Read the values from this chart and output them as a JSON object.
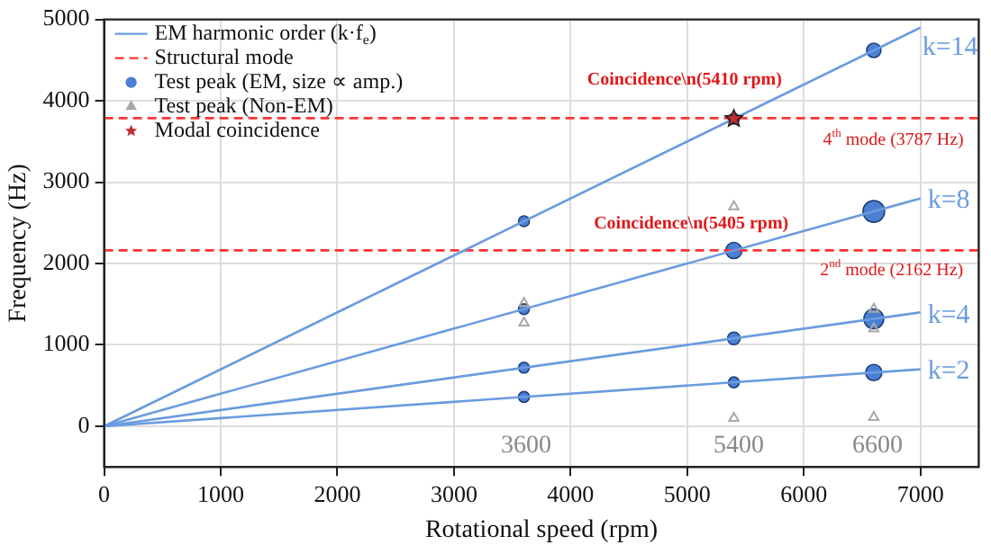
{
  "chart_data": {
    "type": "line",
    "xlabel": "Rotational speed (rpm)",
    "ylabel": "Frequency (Hz)",
    "xlim": [
      0,
      7500
    ],
    "ylim": [
      -500,
      5000
    ],
    "xticks": [
      0,
      1000,
      2000,
      3000,
      4000,
      5000,
      6000,
      7000
    ],
    "yticks": [
      0,
      1000,
      2000,
      3000,
      4000,
      5000
    ],
    "grid": true,
    "legend": "top left",
    "series": [
      {
        "name": "EM harmonic order (k·f$_{e}$)",
        "type": "line",
        "color": "#6a9be0",
        "marker": "none",
        "line_style": "solid",
        "x": [
          0,
          7000
        ],
        "values": [
          0,
          4900
        ]
      },
      {
        "type": "line",
        "color": "#6a9be0",
        "marker": "none",
        "line_style": "solid",
        "x": [
          0,
          7000
        ],
        "values": [
          0,
          2800
        ]
      },
      {
        "type": "line",
        "color": "#6a9be0",
        "marker": "none",
        "line_style": "solid",
        "x": [
          0,
          7000
        ],
        "values": [
          0,
          1400
        ]
      },
      {
        "type": "line",
        "color": "#6a9be0",
        "marker": "none",
        "line_style": "solid",
        "x": [
          0,
          7000
        ],
        "values": [
          0,
          700
        ]
      },
      {
        "name": "Structural mode",
        "type": "line",
        "color": "#ff3333",
        "marker": "none",
        "line_style": "dashed",
        "x": [
          0,
          7500
        ],
        "values": [
          3787,
          3787
        ]
      },
      {
        "type": "line",
        "color": "#ff3333",
        "marker": "none",
        "line_style": "dashed",
        "x": [
          0,
          7500
        ],
        "values": [
          2162,
          2162
        ]
      },
      {
        "name": "Test peak (EM, size ∝ amp.)",
        "type": "bubble",
        "color": "#4a7fd4",
        "marker": "circle",
        "x": [
          3600,
          5400,
          6600,
          3600,
          5400,
          6600,
          3600,
          5400,
          6600,
          3600,
          5400,
          6600
        ],
        "values": [
          360,
          540,
          660,
          720,
          1080,
          1320,
          1440,
          2160,
          2640,
          2520,
          3780,
          4620
        ],
        "sizes": [
          0.25,
          0.25,
          0.56,
          0.25,
          0.34,
          0.84,
          0.25,
          0.56,
          1,
          0.25,
          0.25,
          0.44
        ]
      },
      {
        "name": "Test peak (Non-EM)",
        "type": "scatter",
        "color": "#a8a8a8",
        "marker": "triangle",
        "x": [
          3600,
          3600,
          5400,
          5400,
          6600,
          6600,
          6600
        ],
        "values": [
          1510,
          1270,
          2700,
          100,
          1440,
          1200,
          110
        ]
      },
      {
        "name": "Modal coincidence",
        "type": "scatter",
        "color": "#c03030",
        "marker": "star",
        "x": [
          5400
        ],
        "values": [
          3780
        ]
      }
    ],
    "annotations": [
      {
        "text": "Coincidence\\n(5410 rpm)",
        "x": 5410,
        "y": 3787
      },
      {
        "text": "Coincidence\\n(5405 rpm)",
        "x": 5405,
        "y": 2162
      },
      {
        "text": "4$^{th}$ mode (3787 Hz)",
        "x": 7000,
        "y": 3787
      },
      {
        "text": "2$^{nd}$ mode (2162 Hz)",
        "x": 7000,
        "y": 2162
      },
      {
        "text": "k=14",
        "x": 7000,
        "y": 4900
      },
      {
        "text": "k=8",
        "x": 7000,
        "y": 2800
      },
      {
        "text": "k=4",
        "x": 7000,
        "y": 1400
      },
      {
        "text": "k=2",
        "x": 7000,
        "y": 700
      },
      "3600",
      "5400",
      "6600"
    ]
  }
}
